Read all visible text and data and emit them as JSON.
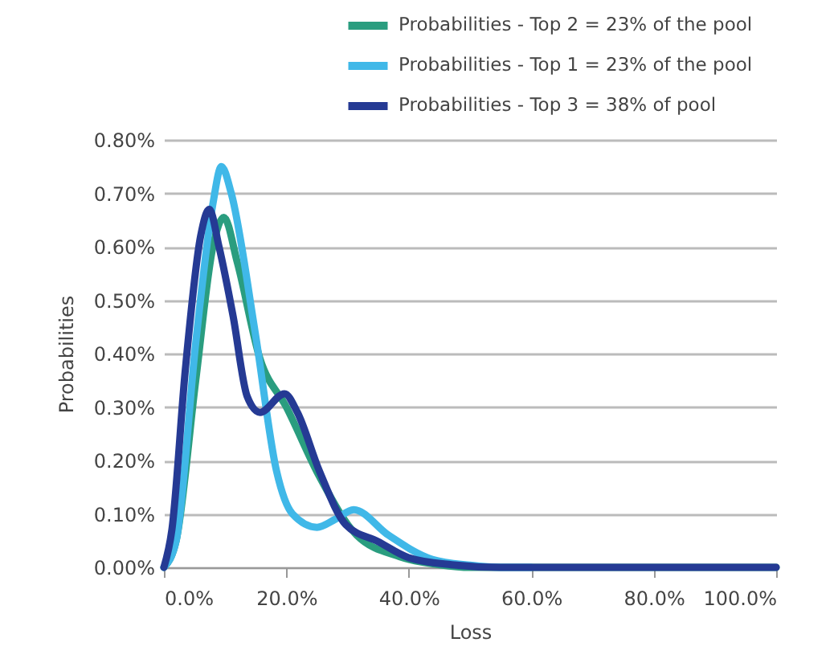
{
  "chart_data": {
    "type": "line",
    "xlabel": "Loss",
    "ylabel": "Probabilities",
    "legend": "top",
    "grid": "y",
    "line_style": "solid",
    "marker": "none",
    "xlim": [
      0,
      100
    ],
    "ylim": [
      0,
      0.8
    ],
    "xticks": [
      {
        "value": 0,
        "label": "0.0%"
      },
      {
        "value": 20,
        "label": "20.0%"
      },
      {
        "value": 40,
        "label": "40.0%"
      },
      {
        "value": 60,
        "label": "60.0%"
      },
      {
        "value": 80,
        "label": "80.0%"
      },
      {
        "value": 100,
        "label": "100.0%"
      }
    ],
    "yticks": [
      {
        "value": 0,
        "label": "0.00%"
      },
      {
        "value": 0.1,
        "label": "0.10%"
      },
      {
        "value": 0.2,
        "label": "0.20%"
      },
      {
        "value": 0.3,
        "label": "0.30%"
      },
      {
        "value": 0.4,
        "label": "0.40%"
      },
      {
        "value": 0.5,
        "label": "0.50%"
      },
      {
        "value": 0.6,
        "label": "0.60%"
      },
      {
        "value": 0.7,
        "label": "0.70%"
      },
      {
        "value": 0.8,
        "label": "0.80%"
      }
    ],
    "series": [
      {
        "name": "Probabilities - Top 2 = 23% of the pool",
        "color": "#2a9d7f",
        "x": [
          0,
          2,
          5.2,
          8,
          9.8,
          12,
          15.7,
          20,
          25.4,
          31.5,
          38.5,
          45,
          50,
          60,
          80,
          100
        ],
        "values": [
          0,
          0.05,
          0.35,
          0.6,
          0.655,
          0.57,
          0.39,
          0.3,
          0.17,
          0.06,
          0.02,
          0.005,
          0,
          0,
          0,
          0
        ]
      },
      {
        "name": "Probabilities - Top 1 = 23% of the pool",
        "color": "#40b8e8",
        "x": [
          0,
          2,
          5.2,
          8,
          9.4,
          11,
          14.9,
          18.4,
          21,
          25,
          28,
          31,
          36.7,
          43.8,
          50,
          55,
          60
        ],
        "values": [
          0,
          0.05,
          0.42,
          0.68,
          0.75,
          0.7,
          0.44,
          0.18,
          0.1,
          0.075,
          0.09,
          0.108,
          0.06,
          0.015,
          0.004,
          0,
          0
        ]
      },
      {
        "name": "Probabilities - Top 3 = 38% of pool",
        "color": "#253a94",
        "x": [
          0,
          1.3,
          3.5,
          6,
          7.4,
          9,
          11.3,
          13.6,
          15.7,
          19.7,
          21.8,
          25.4,
          29.7,
          35,
          40,
          47,
          55,
          60,
          80,
          100
        ],
        "values": [
          0,
          0.07,
          0.37,
          0.62,
          0.67,
          0.6,
          0.47,
          0.32,
          0.29,
          0.325,
          0.29,
          0.18,
          0.08,
          0.048,
          0.018,
          0.005,
          0,
          0,
          0,
          0
        ]
      }
    ]
  }
}
